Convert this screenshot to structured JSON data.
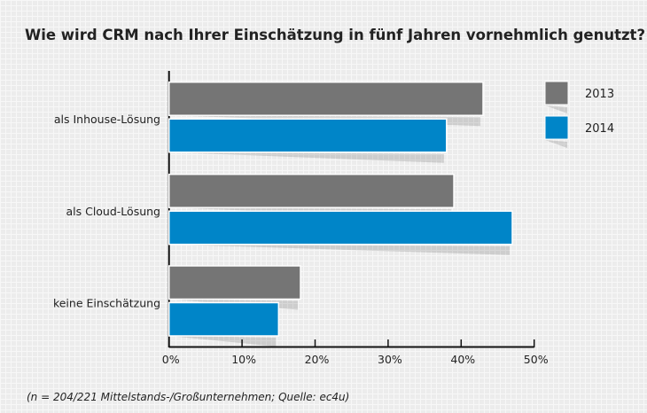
{
  "chart_data": {
    "type": "bar",
    "orientation": "horizontal",
    "title": "Wie wird CRM nach Ihrer Einschätzung in fünf Jahren vornehmlich genutzt?",
    "categories": [
      "als Inhouse-Lösung",
      "als Cloud-Lösung",
      "keine Einschätzung"
    ],
    "series": [
      {
        "name": "2013",
        "color": "#757575",
        "values": [
          43,
          39,
          18
        ]
      },
      {
        "name": "2014",
        "color": "#0085c8",
        "values": [
          38,
          47,
          15
        ]
      }
    ],
    "xlim": [
      0,
      50
    ],
    "xticks": [
      "0%",
      "10%",
      "20%",
      "30%",
      "40%",
      "50%"
    ],
    "unit": "%",
    "legend": "top-right",
    "grid": false,
    "footnote": "(n = 204/221 Mittelstands-/Großunternehmen; Quelle: ec4u)"
  }
}
